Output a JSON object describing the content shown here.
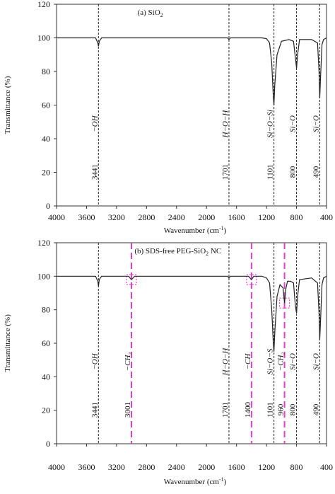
{
  "chart_data": [
    {
      "type": "line",
      "title": "(a) SiO",
      "title_sub": "2",
      "xlabel": "Wavenumber (cm",
      "xlabel_sup": "-1",
      "xlabel_end": ")",
      "ylabel": "Transmittance (%)",
      "xlim": [
        4000,
        400
      ],
      "ylim": [
        0,
        120
      ],
      "x_ticks": [
        "4000",
        "3600",
        "3200",
        "2800",
        "2400",
        "2000",
        "1600",
        "1200",
        "800",
        "400"
      ],
      "y_ticks": [
        "0",
        "20",
        "40",
        "60",
        "80",
        "100",
        "120"
      ],
      "grid": false,
      "series": [
        {
          "color": "#222222",
          "baseline": 100,
          "points": [
            [
              4000,
              100
            ],
            [
              3480,
              100
            ],
            [
              3450,
              97
            ],
            [
              3441,
              95
            ],
            [
              3430,
              98
            ],
            [
              3400,
              100
            ],
            [
              1720,
              100
            ],
            [
              1701,
              99
            ],
            [
              1680,
              100
            ],
            [
              1260,
              100
            ],
            [
              1200,
              99.5
            ],
            [
              1160,
              97
            ],
            [
              1130,
              85
            ],
            [
              1110,
              65
            ],
            [
              1101,
              60
            ],
            [
              1090,
              72
            ],
            [
              1060,
              90
            ],
            [
              1000,
              98
            ],
            [
              900,
              99
            ],
            [
              840,
              98
            ],
            [
              815,
              88
            ],
            [
              800,
              82
            ],
            [
              785,
              90
            ],
            [
              760,
              99
            ],
            [
              600,
              99
            ],
            [
              520,
              97
            ],
            [
              500,
              80
            ],
            [
              490,
              64
            ],
            [
              478,
              78
            ],
            [
              460,
              96
            ],
            [
              440,
              99
            ],
            [
              400,
              100
            ]
          ]
        }
      ],
      "markers": [
        {
          "x": 3441,
          "color": "#222222",
          "dashed": "short",
          "value": "3441",
          "label": "−OH"
        },
        {
          "x": 1701,
          "color": "#222222",
          "dashed": "short",
          "value": "1701",
          "label": "H−O−H"
        },
        {
          "x": 1101,
          "color": "#222222",
          "dashed": "short",
          "value": "1101",
          "label": "Si−O−Si"
        },
        {
          "x": 800,
          "color": "#222222",
          "dashed": "short",
          "value": "800",
          "label": "Si−O"
        },
        {
          "x": 490,
          "color": "#222222",
          "dashed": "short",
          "value": "490",
          "label": "Si−O"
        }
      ]
    },
    {
      "type": "line",
      "title": "(b) SDS-free PEG-SiO",
      "title_sub": "2",
      "title_end": " NC",
      "xlabel": "Wavenumber (cm",
      "xlabel_sup": "-1",
      "xlabel_end": ")",
      "ylabel": "Transmittance (%)",
      "xlim": [
        4000,
        400
      ],
      "ylim": [
        0,
        120
      ],
      "x_ticks": [
        "4000",
        "3600",
        "3200",
        "2800",
        "2400",
        "2000",
        "1600",
        "1200",
        "800",
        "400"
      ],
      "y_ticks": [
        "0",
        "20",
        "40",
        "60",
        "80",
        "100",
        "120"
      ],
      "grid": false,
      "series": [
        {
          "color": "#222222",
          "baseline": 100,
          "points": [
            [
              4000,
              100
            ],
            [
              3480,
              100
            ],
            [
              3450,
              97
            ],
            [
              3441,
              94
            ],
            [
              3430,
              98
            ],
            [
              3400,
              100
            ],
            [
              3040,
              100
            ],
            [
              3001,
              98
            ],
            [
              2960,
              100
            ],
            [
              1720,
              100
            ],
            [
              1701,
              99
            ],
            [
              1680,
              100
            ],
            [
              1440,
              100
            ],
            [
              1400,
              98
            ],
            [
              1370,
              100
            ],
            [
              1260,
              100
            ],
            [
              1200,
              99
            ],
            [
              1160,
              96
            ],
            [
              1130,
              80
            ],
            [
              1110,
              60
            ],
            [
              1101,
              55
            ],
            [
              1088,
              68
            ],
            [
              1060,
              88
            ],
            [
              1020,
              95
            ],
            [
              980,
              93
            ],
            [
              960,
              84
            ],
            [
              945,
              92
            ],
            [
              920,
              97
            ],
            [
              880,
              97
            ],
            [
              840,
              96
            ],
            [
              815,
              82
            ],
            [
              800,
              78
            ],
            [
              785,
              88
            ],
            [
              760,
              98
            ],
            [
              600,
              99
            ],
            [
              520,
              96
            ],
            [
              500,
              78
            ],
            [
              490,
              62
            ],
            [
              478,
              75
            ],
            [
              460,
              95
            ],
            [
              440,
              99
            ],
            [
              400,
              100
            ]
          ]
        }
      ],
      "markers": [
        {
          "x": 3441,
          "color": "#222222",
          "dashed": "short",
          "value": "3441",
          "label": "−OH"
        },
        {
          "x": 3001,
          "color": "#e040c8",
          "dashed": "long",
          "value": "3001",
          "label": "−CH₃",
          "box_y": 98
        },
        {
          "x": 1701,
          "color": "#222222",
          "dashed": "short",
          "value": "1701",
          "label": "H−O−H"
        },
        {
          "x": 1400,
          "color": "#e040c8",
          "dashed": "long",
          "value": "1400",
          "label": "−CH",
          "box_y": 98
        },
        {
          "x": 1101,
          "color": "#222222",
          "dashed": "short",
          "value": "1101",
          "label": "Si−O−S"
        },
        {
          "x": 960,
          "color": "#e040c8",
          "dashed": "long",
          "value": "960",
          "label": "−CH₂",
          "box_y": 84
        },
        {
          "x": 800,
          "color": "#222222",
          "dashed": "short",
          "value": "800",
          "label": "Si−O"
        },
        {
          "x": 490,
          "color": "#222222",
          "dashed": "short",
          "value": "490",
          "label": "Si−O"
        }
      ]
    }
  ]
}
